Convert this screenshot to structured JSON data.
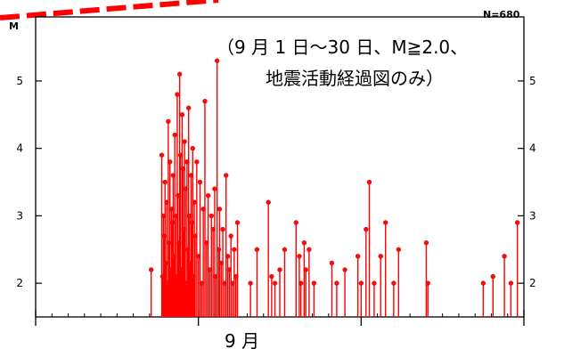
{
  "chart_data": {
    "type": "scatter",
    "style": "stem",
    "ylabel": "M",
    "xlabel": "9 月",
    "count_label": "N=680",
    "annotation_line1": "（9 月 1 日～30 日、M≧2.0、",
    "annotation_line2": "地震活動経過図のみ）",
    "ylim": [
      1.5,
      5.95
    ],
    "yticks": [
      "2",
      "3",
      "4",
      "5"
    ],
    "xlim": [
      1,
      31
    ],
    "color": "#ff0000",
    "marker_color": "#ee1111",
    "points": [
      [
        8.1,
        2.2
      ],
      [
        8.75,
        3.9
      ],
      [
        8.8,
        2.1
      ],
      [
        8.85,
        3.0
      ],
      [
        8.9,
        2.7
      ],
      [
        8.95,
        3.5
      ],
      [
        9.0,
        2.3
      ],
      [
        9.05,
        3.2
      ],
      [
        9.1,
        2.0
      ],
      [
        9.15,
        4.4
      ],
      [
        9.2,
        2.6
      ],
      [
        9.25,
        3.8
      ],
      [
        9.3,
        2.2
      ],
      [
        9.35,
        3.1
      ],
      [
        9.4,
        2.9
      ],
      [
        9.45,
        3.6
      ],
      [
        9.5,
        2.4
      ],
      [
        9.55,
        4.2
      ],
      [
        9.6,
        3.0
      ],
      [
        9.65,
        2.1
      ],
      [
        9.7,
        4.8
      ],
      [
        9.75,
        3.3
      ],
      [
        9.8,
        2.6
      ],
      [
        9.85,
        5.1
      ],
      [
        9.9,
        3.9
      ],
      [
        9.95,
        2.2
      ],
      [
        10.0,
        4.5
      ],
      [
        10.05,
        3.7
      ],
      [
        10.1,
        2.8
      ],
      [
        10.15,
        4.1
      ],
      [
        10.2,
        3.4
      ],
      [
        10.25,
        2.0
      ],
      [
        10.3,
        3.8
      ],
      [
        10.35,
        2.5
      ],
      [
        10.4,
        4.6
      ],
      [
        10.45,
        3.0
      ],
      [
        10.5,
        2.3
      ],
      [
        10.55,
        3.6
      ],
      [
        10.6,
        2.9
      ],
      [
        10.65,
        4.0
      ],
      [
        10.7,
        2.1
      ],
      [
        10.75,
        3.2
      ],
      [
        10.8,
        2.7
      ],
      [
        10.9,
        3.8
      ],
      [
        11.0,
        2.4
      ],
      [
        11.1,
        3.5
      ],
      [
        11.2,
        2.0
      ],
      [
        11.3,
        3.1
      ],
      [
        11.4,
        4.7
      ],
      [
        11.5,
        2.6
      ],
      [
        11.6,
        3.3
      ],
      [
        11.7,
        2.2
      ],
      [
        11.8,
        3.0
      ],
      [
        11.9,
        2.8
      ],
      [
        12.0,
        3.4
      ],
      [
        12.05,
        2.1
      ],
      [
        12.15,
        5.3
      ],
      [
        12.25,
        2.5
      ],
      [
        12.3,
        3.1
      ],
      [
        12.4,
        2.3
      ],
      [
        12.5,
        2.8
      ],
      [
        12.6,
        2.0
      ],
      [
        12.7,
        3.6
      ],
      [
        12.8,
        2.4
      ],
      [
        12.9,
        2.2
      ],
      [
        13.0,
        2.7
      ],
      [
        13.1,
        2.0
      ],
      [
        13.2,
        2.5
      ],
      [
        13.3,
        2.1
      ],
      [
        13.4,
        2.9
      ],
      [
        14.2,
        2.0
      ],
      [
        14.6,
        2.5
      ],
      [
        15.3,
        3.2
      ],
      [
        15.5,
        2.1
      ],
      [
        15.7,
        2.0
      ],
      [
        16.0,
        2.2
      ],
      [
        16.3,
        2.5
      ],
      [
        17.0,
        2.9
      ],
      [
        17.2,
        2.4
      ],
      [
        17.3,
        2.0
      ],
      [
        17.5,
        2.6
      ],
      [
        17.6,
        2.2
      ],
      [
        17.8,
        2.5
      ],
      [
        18.1,
        2.0
      ],
      [
        19.2,
        2.3
      ],
      [
        19.5,
        2.0
      ],
      [
        20.0,
        2.2
      ],
      [
        20.8,
        2.4
      ],
      [
        21.0,
        2.0
      ],
      [
        21.3,
        2.8
      ],
      [
        21.5,
        3.5
      ],
      [
        21.8,
        2.0
      ],
      [
        22.2,
        2.4
      ],
      [
        22.5,
        2.9
      ],
      [
        23.0,
        2.0
      ],
      [
        23.3,
        2.5
      ],
      [
        25.0,
        2.6
      ],
      [
        25.1,
        2.0
      ],
      [
        28.5,
        2.0
      ],
      [
        29.1,
        2.1
      ],
      [
        29.8,
        2.4
      ],
      [
        30.2,
        2.0
      ],
      [
        30.6,
        2.9
      ]
    ]
  }
}
